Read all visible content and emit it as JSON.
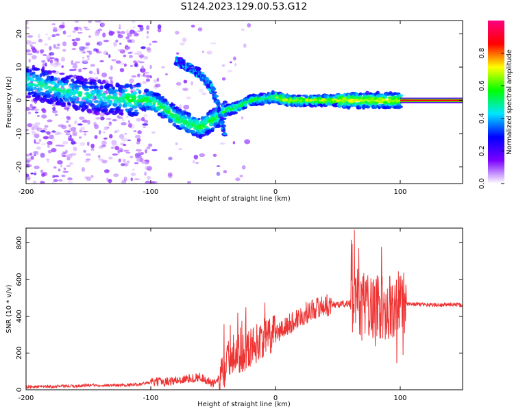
{
  "chart_data": [
    {
      "type": "heatmap",
      "title": "S124.2023.129.00.53.G12",
      "xlabel": "Height of straight line (km)",
      "ylabel": "Frequency (Hz)",
      "xlim": [
        -200,
        150
      ],
      "ylim": [
        -25,
        24
      ],
      "xticks": [
        -200,
        -100,
        0,
        100
      ],
      "yticks": [
        -20,
        -10,
        0,
        10,
        20
      ],
      "colorbar": {
        "label": "Normalized spectral amplitude",
        "range": [
          0,
          1
        ],
        "ticks": [
          "0.0",
          "0.2",
          "0.4",
          "0.6",
          "0.8"
        ],
        "colormap": [
          "#ffffff",
          "#7a00ff",
          "#0000ff",
          "#00e5ff",
          "#00ff00",
          "#ffff00",
          "#ff0000",
          "#ff0080"
        ]
      },
      "ridge": [
        {
          "x": -200,
          "y": 6
        },
        {
          "x": -180,
          "y": 4
        },
        {
          "x": -160,
          "y": 2
        },
        {
          "x": -140,
          "y": 1
        },
        {
          "x": -120,
          "y": 0.5
        },
        {
          "x": -100,
          "y": 0
        },
        {
          "x": -90,
          "y": -2
        },
        {
          "x": -80,
          "y": -5
        },
        {
          "x": -70,
          "y": -7
        },
        {
          "x": -60,
          "y": -8
        },
        {
          "x": -50,
          "y": -6
        },
        {
          "x": -40,
          "y": -3
        },
        {
          "x": -30,
          "y": -2
        },
        {
          "x": -20,
          "y": 0
        },
        {
          "x": -10,
          "y": 0.5
        },
        {
          "x": 0,
          "y": 1
        },
        {
          "x": 10,
          "y": 0
        },
        {
          "x": 50,
          "y": 0
        },
        {
          "x": 90,
          "y": 0
        },
        {
          "x": 100,
          "y": 0
        },
        {
          "x": 150,
          "y": 0
        }
      ],
      "branch": [
        {
          "x": -80,
          "y": 12
        },
        {
          "x": -70,
          "y": 10
        },
        {
          "x": -60,
          "y": 8
        },
        {
          "x": -50,
          "y": 3
        },
        {
          "x": -45,
          "y": -3
        },
        {
          "x": -40,
          "y": -12
        }
      ],
      "tone": {
        "x_start": 100,
        "x_end": 150,
        "y": 0
      }
    },
    {
      "type": "line",
      "xlabel": "Height of straight line (km)",
      "ylabel": "SNR (10 * v/v)",
      "xlim": [
        -200,
        150
      ],
      "ylim": [
        0,
        880
      ],
      "xticks": [
        -200,
        -100,
        0,
        100
      ],
      "yticks": [
        0,
        200,
        400,
        600,
        800
      ],
      "color": "#ee3333",
      "series": [
        {
          "values": [
            {
              "x": -200,
              "y": 15
            },
            {
              "x": -160,
              "y": 20
            },
            {
              "x": -150,
              "y": 25
            },
            {
              "x": -120,
              "y": 25
            },
            {
              "x": -110,
              "y": 30
            },
            {
              "x": -100,
              "y": 40
            },
            {
              "x": -80,
              "y": 50
            },
            {
              "x": -60,
              "y": 70
            },
            {
              "x": -50,
              "y": 30
            },
            {
              "x": -45,
              "y": 60
            },
            {
              "x": -40,
              "y": 130
            },
            {
              "x": -35,
              "y": 200
            },
            {
              "x": -30,
              "y": 190
            },
            {
              "x": -20,
              "y": 230
            },
            {
              "x": -10,
              "y": 280
            },
            {
              "x": 0,
              "y": 300
            },
            {
              "x": 10,
              "y": 350
            },
            {
              "x": 20,
              "y": 400
            },
            {
              "x": 30,
              "y": 440
            },
            {
              "x": 40,
              "y": 460
            },
            {
              "x": 50,
              "y": 465
            },
            {
              "x": 60,
              "y": 470
            },
            {
              "x": 65,
              "y": 480
            },
            {
              "x": 70,
              "y": 470
            },
            {
              "x": 80,
              "y": 460
            },
            {
              "x": 90,
              "y": 440
            },
            {
              "x": 100,
              "y": 470
            },
            {
              "x": 110,
              "y": 465
            },
            {
              "x": 120,
              "y": 465
            },
            {
              "x": 130,
              "y": 460
            },
            {
              "x": 140,
              "y": 465
            },
            {
              "x": 150,
              "y": 460
            }
          ]
        }
      ]
    }
  ]
}
